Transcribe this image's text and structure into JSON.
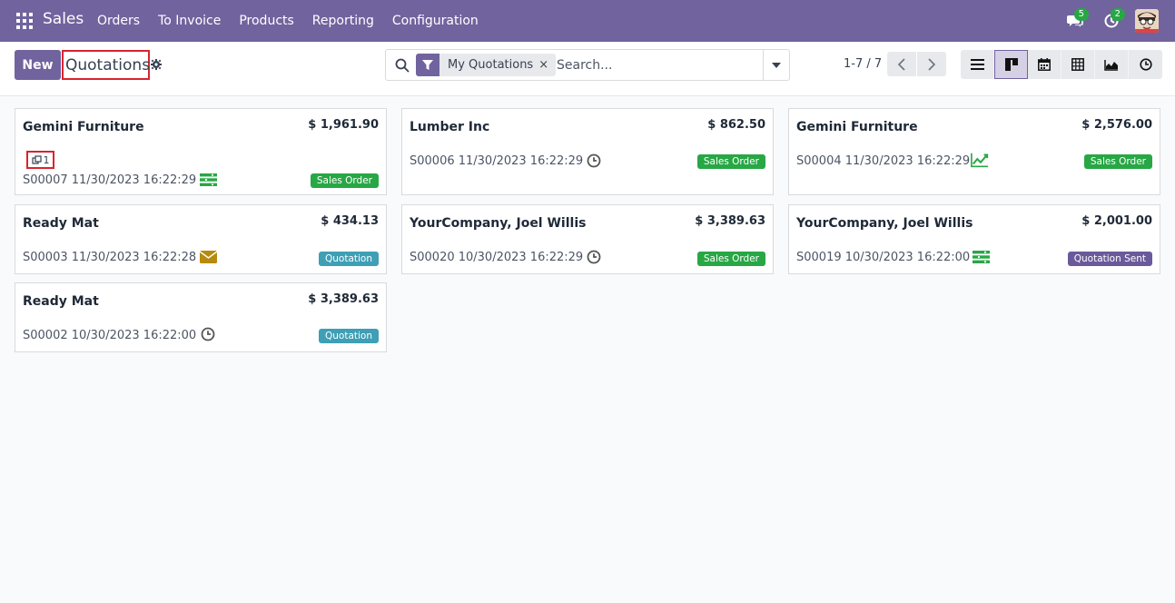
{
  "navbar": {
    "brand": "Sales",
    "menu": [
      "Orders",
      "To Invoice",
      "Products",
      "Reporting",
      "Configuration"
    ],
    "messages_count": "5",
    "activities_count": "2"
  },
  "control": {
    "new_label": "New",
    "title": "Quotations",
    "facet_label": "My Quotations",
    "facet_close": "×",
    "search_placeholder": "Search...",
    "pager": "1-7 / 7"
  },
  "cards": [
    {
      "customer": "Gemini Furniture",
      "amount": "$ 1,961.90",
      "ref": "S00007 11/30/2023 16:22:29",
      "status": "Sales Order",
      "activity": "list-activity-icon",
      "attachments": "1"
    },
    {
      "customer": "Lumber Inc",
      "amount": "$ 862.50",
      "ref": "S00006 11/30/2023 16:22:29",
      "status": "Sales Order",
      "activity": "clock-icon"
    },
    {
      "customer": "Gemini Furniture",
      "amount": "$ 2,576.00",
      "ref": "S00004 11/30/2023 16:22:29",
      "status": "Sales Order",
      "activity": "chart-activity-icon"
    },
    {
      "customer": "Ready Mat",
      "amount": "$ 434.13",
      "ref": "S00003 11/30/2023 16:22:28",
      "status": "Quotation",
      "activity": "envelope-icon"
    },
    {
      "customer": "YourCompany, Joel Willis",
      "amount": "$ 3,389.63",
      "ref": "S00020 10/30/2023 16:22:29",
      "status": "Sales Order",
      "activity": "clock-icon"
    },
    {
      "customer": "YourCompany, Joel Willis",
      "amount": "$ 2,001.00",
      "ref": "S00019 10/30/2023 16:22:00",
      "status": "Quotation Sent",
      "activity": "list-activity-icon"
    },
    {
      "customer": "Ready Mat",
      "amount": "$ 3,389.63",
      "ref": "S00002 10/30/2023 16:22:00",
      "status": "Quotation",
      "activity": "clock-icon"
    }
  ],
  "colors": {
    "brand": "#71639e",
    "sales_order": "#28a745",
    "quotation": "#3e9fb5",
    "quotation_sent": "#6b5a9b"
  }
}
